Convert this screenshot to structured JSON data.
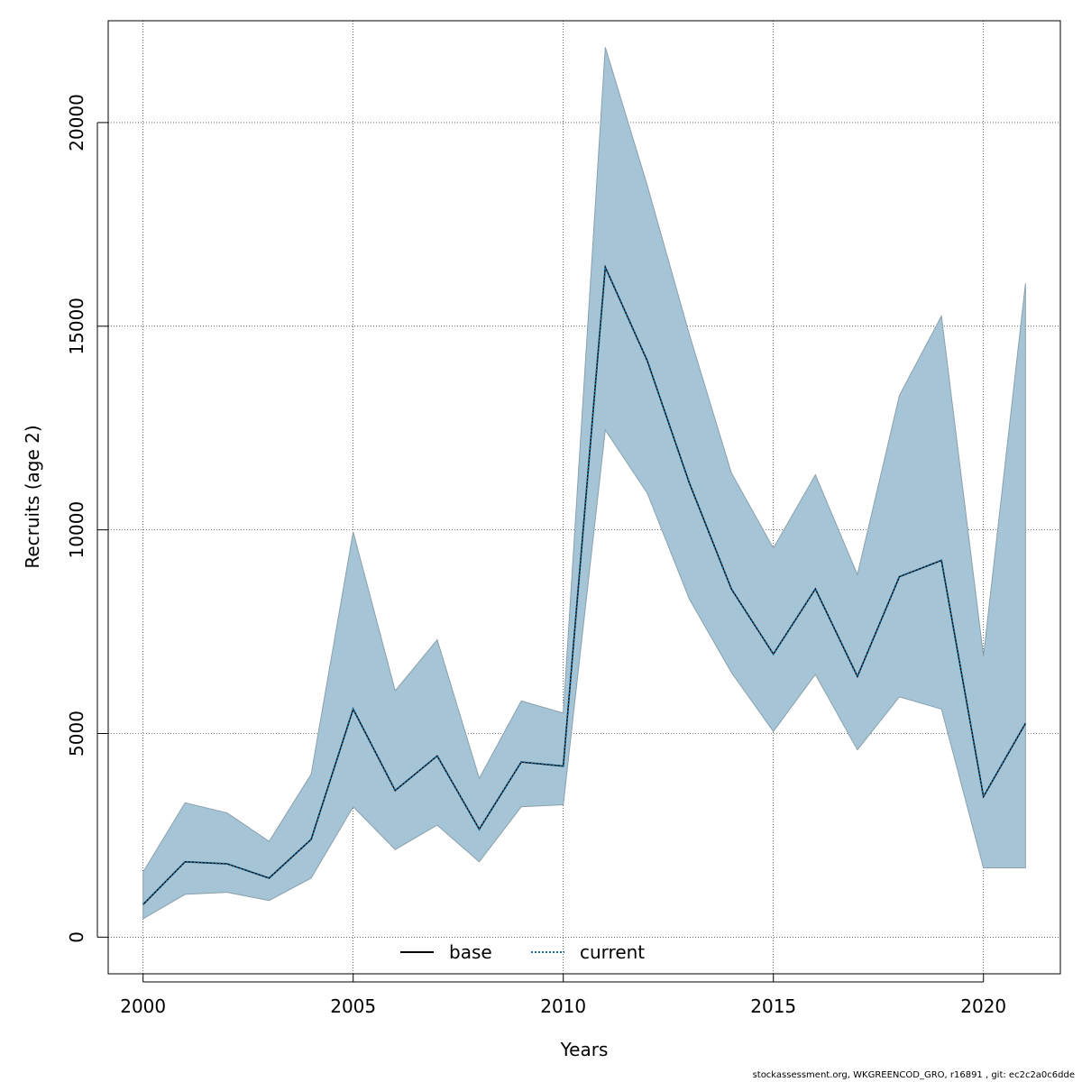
{
  "chart_data": {
    "type": "area",
    "title": "",
    "xlabel": "Years",
    "ylabel": "Recruits (age 2)",
    "xlim": [
      1999.17,
      2021.83
    ],
    "ylim": [
      -900,
      22500
    ],
    "x_ticks": [
      "2000",
      "2005",
      "2010",
      "2015",
      "2020"
    ],
    "y_ticks": [
      "0",
      "5000",
      "10000",
      "15000",
      "20000"
    ],
    "grid": true,
    "x": [
      2000,
      2001,
      2002,
      2003,
      2004,
      2005,
      2006,
      2007,
      2008,
      2009,
      2010,
      2011,
      2012,
      2013,
      2014,
      2015,
      2016,
      2017,
      2018,
      2019,
      2020,
      2021
    ],
    "band": {
      "name": "confidence interval",
      "color": "#a5c5d6",
      "upper": [
        1600,
        3300,
        3050,
        2350,
        4000,
        9950,
        6050,
        7300,
        3900,
        5800,
        5500,
        21850,
        18450,
        14800,
        11400,
        9550,
        11350,
        8900,
        13300,
        15250,
        6900,
        16050
      ],
      "lower": [
        450,
        1050,
        1100,
        900,
        1450,
        3200,
        2150,
        2750,
        1850,
        3200,
        3250,
        12450,
        10900,
        8300,
        6500,
        5050,
        6450,
        4600,
        5900,
        5600,
        1700,
        1700
      ]
    },
    "series": [
      {
        "name": "base",
        "style": "solid",
        "color": "#000000",
        "values": [
          800,
          1850,
          1800,
          1450,
          2400,
          5600,
          3600,
          4450,
          2650,
          4300,
          4200,
          16450,
          14150,
          11150,
          8550,
          6950,
          8550,
          6400,
          8850,
          9250,
          3450,
          5250
        ]
      },
      {
        "name": "current",
        "style": "dotted",
        "color": "#1a6a9a",
        "values": [
          800,
          1850,
          1800,
          1450,
          2400,
          5600,
          3600,
          4450,
          2650,
          4300,
          4200,
          16450,
          14150,
          11150,
          8550,
          6950,
          8550,
          6400,
          8850,
          9250,
          3450,
          5250
        ]
      }
    ],
    "legend": {
      "position": "bottom-center",
      "entries": [
        "base",
        "current"
      ]
    }
  },
  "footer": "stockassessment.org, WKGREENCOD_GRO, r16891 , git: ec2c2a0c6dde"
}
